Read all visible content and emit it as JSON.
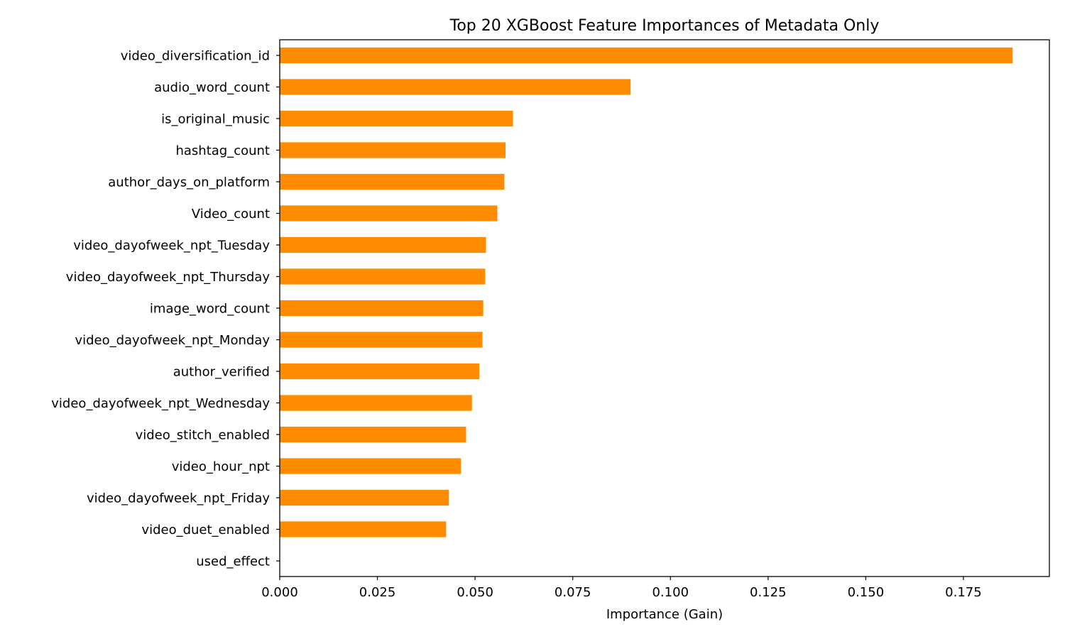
{
  "chart_data": {
    "type": "bar",
    "orientation": "horizontal",
    "title": "Top 20 XGBoost Feature Importances  of Metadata Only",
    "xlabel": "Importance (Gain)",
    "ylabel": "",
    "xlim": [
      0,
      0.197
    ],
    "xticks": [
      0.0,
      0.025,
      0.05,
      0.075,
      0.1,
      0.125,
      0.15,
      0.175
    ],
    "xtick_labels": [
      "0.000",
      "0.025",
      "0.050",
      "0.075",
      "0.100",
      "0.125",
      "0.150",
      "0.175"
    ],
    "grid": false,
    "bar_color": "#ff8c00",
    "categories": [
      "video_diversification_id",
      "audio_word_count",
      "is_original_music",
      "hashtag_count",
      "author_days_on_platform",
      "Video_count",
      "video_dayofweek_npt_Tuesday",
      "video_dayofweek_npt_Thursday",
      "image_word_count",
      "video_dayofweek_npt_Monday",
      "author_verified",
      "video_dayofweek_npt_Wednesday",
      "video_stitch_enabled",
      "video_hour_npt",
      "video_dayofweek_npt_Friday",
      "video_duet_enabled",
      "used_effect"
    ],
    "values": [
      0.1876,
      0.0898,
      0.0597,
      0.0578,
      0.0575,
      0.0557,
      0.0528,
      0.0526,
      0.0521,
      0.0519,
      0.0511,
      0.0492,
      0.0477,
      0.0464,
      0.0433,
      0.0426,
      0.0
    ]
  }
}
